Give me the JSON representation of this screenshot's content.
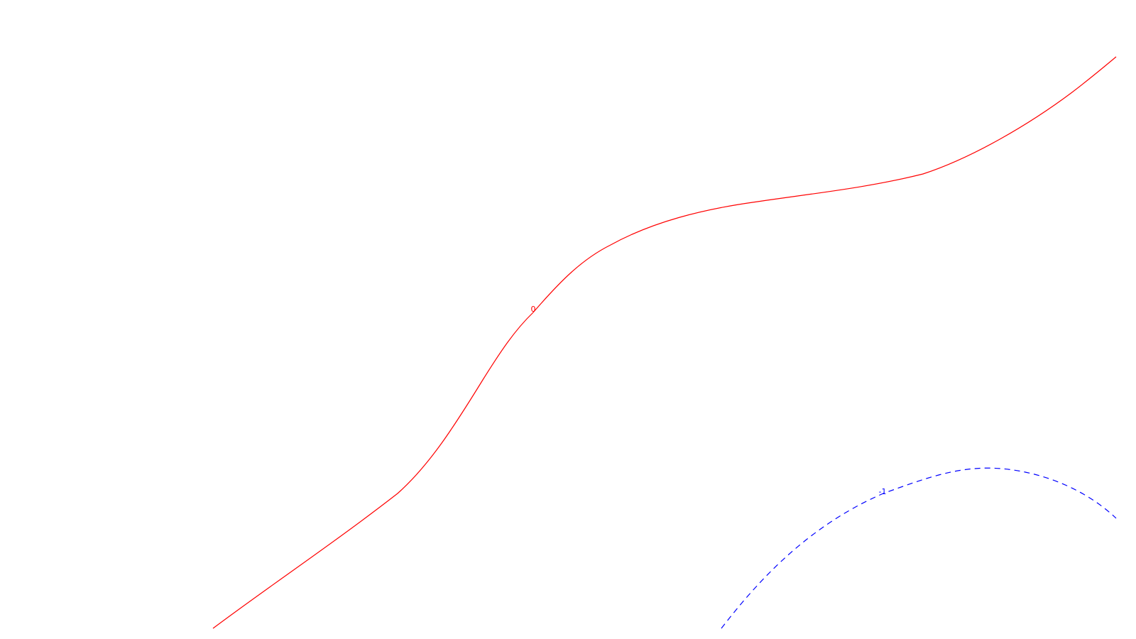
{
  "chart_data": {
    "type": "contour",
    "title": "",
    "xlabel": "",
    "ylabel": "",
    "grid": false,
    "legend": false,
    "contours": [
      {
        "level_label": "0",
        "color": "#ff0000",
        "style": "solid"
      },
      {
        "level_label": "-1",
        "color": "#0000ff",
        "style": "dashed"
      }
    ]
  }
}
